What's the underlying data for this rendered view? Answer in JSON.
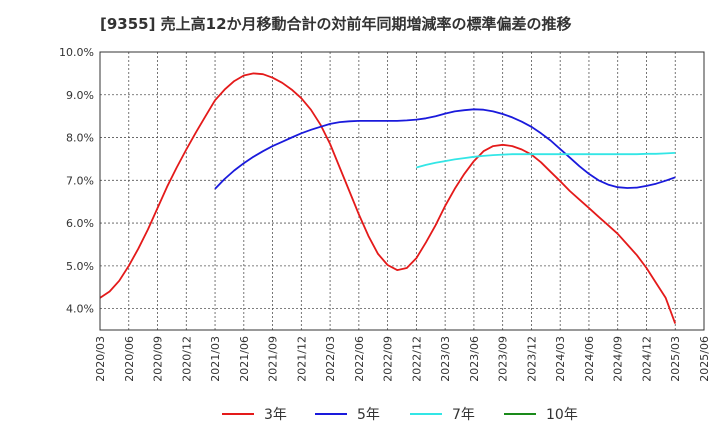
{
  "chart_data": {
    "type": "line",
    "title": "[9355]  売上高12か月移動合計の対前年同期増減率の標準偏差の推移",
    "xlabel": "",
    "ylabel": "",
    "x_ticks": [
      "2020/03",
      "2020/06",
      "2020/09",
      "2020/12",
      "2021/03",
      "2021/06",
      "2021/09",
      "2021/12",
      "2022/03",
      "2022/06",
      "2022/09",
      "2022/12",
      "2023/03",
      "2023/06",
      "2023/09",
      "2023/12",
      "2024/03",
      "2024/06",
      "2024/09",
      "2024/12",
      "2025/03",
      "2025/06"
    ],
    "y_ticks": [
      "4.0%",
      "5.0%",
      "6.0%",
      "7.0%",
      "8.0%",
      "9.0%",
      "10.0%"
    ],
    "y_tick_values": [
      4.0,
      5.0,
      6.0,
      7.0,
      8.0,
      9.0,
      10.0
    ],
    "ylim": [
      3.5,
      10.0
    ],
    "grid": true,
    "legend_position": "bottom",
    "series": [
      {
        "name": "3年",
        "color": "#e41a1a",
        "points": [
          [
            "2020/03",
            4.25
          ],
          [
            "2020/04",
            4.4
          ],
          [
            "2020/05",
            4.65
          ],
          [
            "2020/06",
            5.0
          ],
          [
            "2020/07",
            5.4
          ],
          [
            "2020/08",
            5.85
          ],
          [
            "2020/09",
            6.35
          ],
          [
            "2020/10",
            6.85
          ],
          [
            "2020/11",
            7.3
          ],
          [
            "2020/12",
            7.72
          ],
          [
            "2021/01",
            8.12
          ],
          [
            "2021/02",
            8.5
          ],
          [
            "2021/03",
            8.87
          ],
          [
            "2021/04",
            9.12
          ],
          [
            "2021/05",
            9.32
          ],
          [
            "2021/06",
            9.45
          ],
          [
            "2021/07",
            9.5
          ],
          [
            "2021/08",
            9.48
          ],
          [
            "2021/09",
            9.4
          ],
          [
            "2021/10",
            9.28
          ],
          [
            "2021/11",
            9.12
          ],
          [
            "2021/12",
            8.92
          ],
          [
            "2022/01",
            8.65
          ],
          [
            "2022/02",
            8.3
          ],
          [
            "2022/03",
            7.85
          ],
          [
            "2022/04",
            7.3
          ],
          [
            "2022/05",
            6.75
          ],
          [
            "2022/06",
            6.2
          ],
          [
            "2022/07",
            5.7
          ],
          [
            "2022/08",
            5.28
          ],
          [
            "2022/09",
            5.02
          ],
          [
            "2022/10",
            4.9
          ],
          [
            "2022/11",
            4.95
          ],
          [
            "2022/12",
            5.18
          ],
          [
            "2023/01",
            5.55
          ],
          [
            "2023/02",
            5.95
          ],
          [
            "2023/03",
            6.4
          ],
          [
            "2023/04",
            6.8
          ],
          [
            "2023/05",
            7.15
          ],
          [
            "2023/06",
            7.45
          ],
          [
            "2023/07",
            7.68
          ],
          [
            "2023/08",
            7.8
          ],
          [
            "2023/09",
            7.83
          ],
          [
            "2023/10",
            7.8
          ],
          [
            "2023/11",
            7.72
          ],
          [
            "2023/12",
            7.6
          ],
          [
            "2024/01",
            7.42
          ],
          [
            "2024/02",
            7.2
          ],
          [
            "2024/03",
            6.98
          ],
          [
            "2024/04",
            6.75
          ],
          [
            "2024/05",
            6.55
          ],
          [
            "2024/06",
            6.35
          ],
          [
            "2024/07",
            6.15
          ],
          [
            "2024/08",
            5.95
          ],
          [
            "2024/09",
            5.75
          ],
          [
            "2024/10",
            5.5
          ],
          [
            "2024/11",
            5.25
          ],
          [
            "2024/12",
            4.95
          ],
          [
            "2025/01",
            4.6
          ],
          [
            "2025/02",
            4.25
          ],
          [
            "2025/03",
            3.65
          ]
        ]
      },
      {
        "name": "5年",
        "color": "#1a1adc",
        "points": [
          [
            "2021/03",
            6.8
          ],
          [
            "2021/04",
            7.03
          ],
          [
            "2021/05",
            7.23
          ],
          [
            "2021/06",
            7.4
          ],
          [
            "2021/07",
            7.55
          ],
          [
            "2021/08",
            7.68
          ],
          [
            "2021/09",
            7.8
          ],
          [
            "2021/10",
            7.9
          ],
          [
            "2021/11",
            8.0
          ],
          [
            "2021/12",
            8.1
          ],
          [
            "2022/01",
            8.18
          ],
          [
            "2022/02",
            8.25
          ],
          [
            "2022/03",
            8.32
          ],
          [
            "2022/04",
            8.36
          ],
          [
            "2022/05",
            8.38
          ],
          [
            "2022/06",
            8.39
          ],
          [
            "2022/07",
            8.39
          ],
          [
            "2022/08",
            8.39
          ],
          [
            "2022/09",
            8.39
          ],
          [
            "2022/10",
            8.39
          ],
          [
            "2022/11",
            8.4
          ],
          [
            "2022/12",
            8.42
          ],
          [
            "2023/01",
            8.45
          ],
          [
            "2023/02",
            8.5
          ],
          [
            "2023/03",
            8.56
          ],
          [
            "2023/04",
            8.61
          ],
          [
            "2023/05",
            8.64
          ],
          [
            "2023/06",
            8.66
          ],
          [
            "2023/07",
            8.65
          ],
          [
            "2023/08",
            8.61
          ],
          [
            "2023/09",
            8.55
          ],
          [
            "2023/10",
            8.47
          ],
          [
            "2023/11",
            8.37
          ],
          [
            "2023/12",
            8.25
          ],
          [
            "2024/01",
            8.1
          ],
          [
            "2024/02",
            7.93
          ],
          [
            "2024/03",
            7.73
          ],
          [
            "2024/04",
            7.53
          ],
          [
            "2024/05",
            7.33
          ],
          [
            "2024/06",
            7.15
          ],
          [
            "2024/07",
            7.0
          ],
          [
            "2024/08",
            6.9
          ],
          [
            "2024/09",
            6.84
          ],
          [
            "2024/10",
            6.82
          ],
          [
            "2024/11",
            6.83
          ],
          [
            "2024/12",
            6.87
          ],
          [
            "2025/01",
            6.92
          ],
          [
            "2025/02",
            6.99
          ],
          [
            "2025/03",
            7.07
          ]
        ]
      },
      {
        "name": "7年",
        "color": "#33e6e6",
        "points": [
          [
            "2022/12",
            7.3
          ],
          [
            "2023/01",
            7.36
          ],
          [
            "2023/02",
            7.41
          ],
          [
            "2023/03",
            7.45
          ],
          [
            "2023/04",
            7.49
          ],
          [
            "2023/05",
            7.52
          ],
          [
            "2023/06",
            7.55
          ],
          [
            "2023/07",
            7.57
          ],
          [
            "2023/08",
            7.59
          ],
          [
            "2023/09",
            7.6
          ],
          [
            "2023/10",
            7.61
          ],
          [
            "2023/11",
            7.61
          ],
          [
            "2023/12",
            7.61
          ],
          [
            "2024/01",
            7.61
          ],
          [
            "2024/02",
            7.61
          ],
          [
            "2024/03",
            7.61
          ],
          [
            "2024/04",
            7.61
          ],
          [
            "2024/05",
            7.61
          ],
          [
            "2024/06",
            7.61
          ],
          [
            "2024/07",
            7.61
          ],
          [
            "2024/08",
            7.61
          ],
          [
            "2024/09",
            7.61
          ],
          [
            "2024/10",
            7.61
          ],
          [
            "2024/11",
            7.61
          ],
          [
            "2024/12",
            7.62
          ],
          [
            "2025/01",
            7.62
          ],
          [
            "2025/02",
            7.63
          ],
          [
            "2025/03",
            7.64
          ]
        ]
      },
      {
        "name": "10年",
        "color": "#1a8a1a",
        "points": []
      }
    ]
  }
}
